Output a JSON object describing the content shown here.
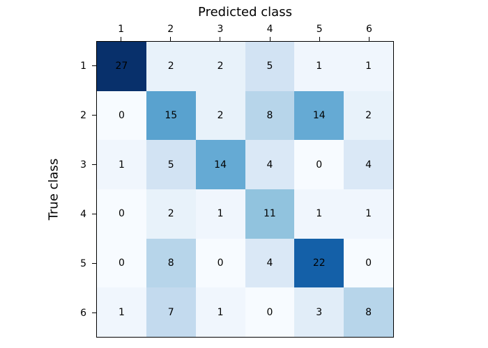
{
  "chart_data": {
    "type": "heatmap",
    "title": "",
    "xlabel": "Predicted class",
    "ylabel": "True class",
    "x_tick_labels": [
      "1",
      "2",
      "3",
      "4",
      "5",
      "6"
    ],
    "y_tick_labels": [
      "1",
      "2",
      "3",
      "4",
      "5",
      "6"
    ],
    "matrix": [
      [
        27,
        2,
        2,
        5,
        1,
        1
      ],
      [
        0,
        15,
        2,
        8,
        14,
        2
      ],
      [
        1,
        5,
        14,
        4,
        0,
        4
      ],
      [
        0,
        2,
        1,
        11,
        1,
        1
      ],
      [
        0,
        8,
        0,
        4,
        22,
        0
      ],
      [
        1,
        7,
        1,
        0,
        3,
        8
      ]
    ],
    "vmin": 0,
    "vmax": 27,
    "colormap": {
      "name": "Blues",
      "stops": [
        "#f7fbff",
        "#deebf7",
        "#c6dbef",
        "#9ecae1",
        "#6baed6",
        "#4292c6",
        "#2171b5",
        "#08519c",
        "#08306b"
      ]
    },
    "cell_text_color": "#000000",
    "axis_color": "#000000",
    "background_color": "#ffffff",
    "legend": "none",
    "x_axis_position": "top",
    "grid": "off"
  }
}
